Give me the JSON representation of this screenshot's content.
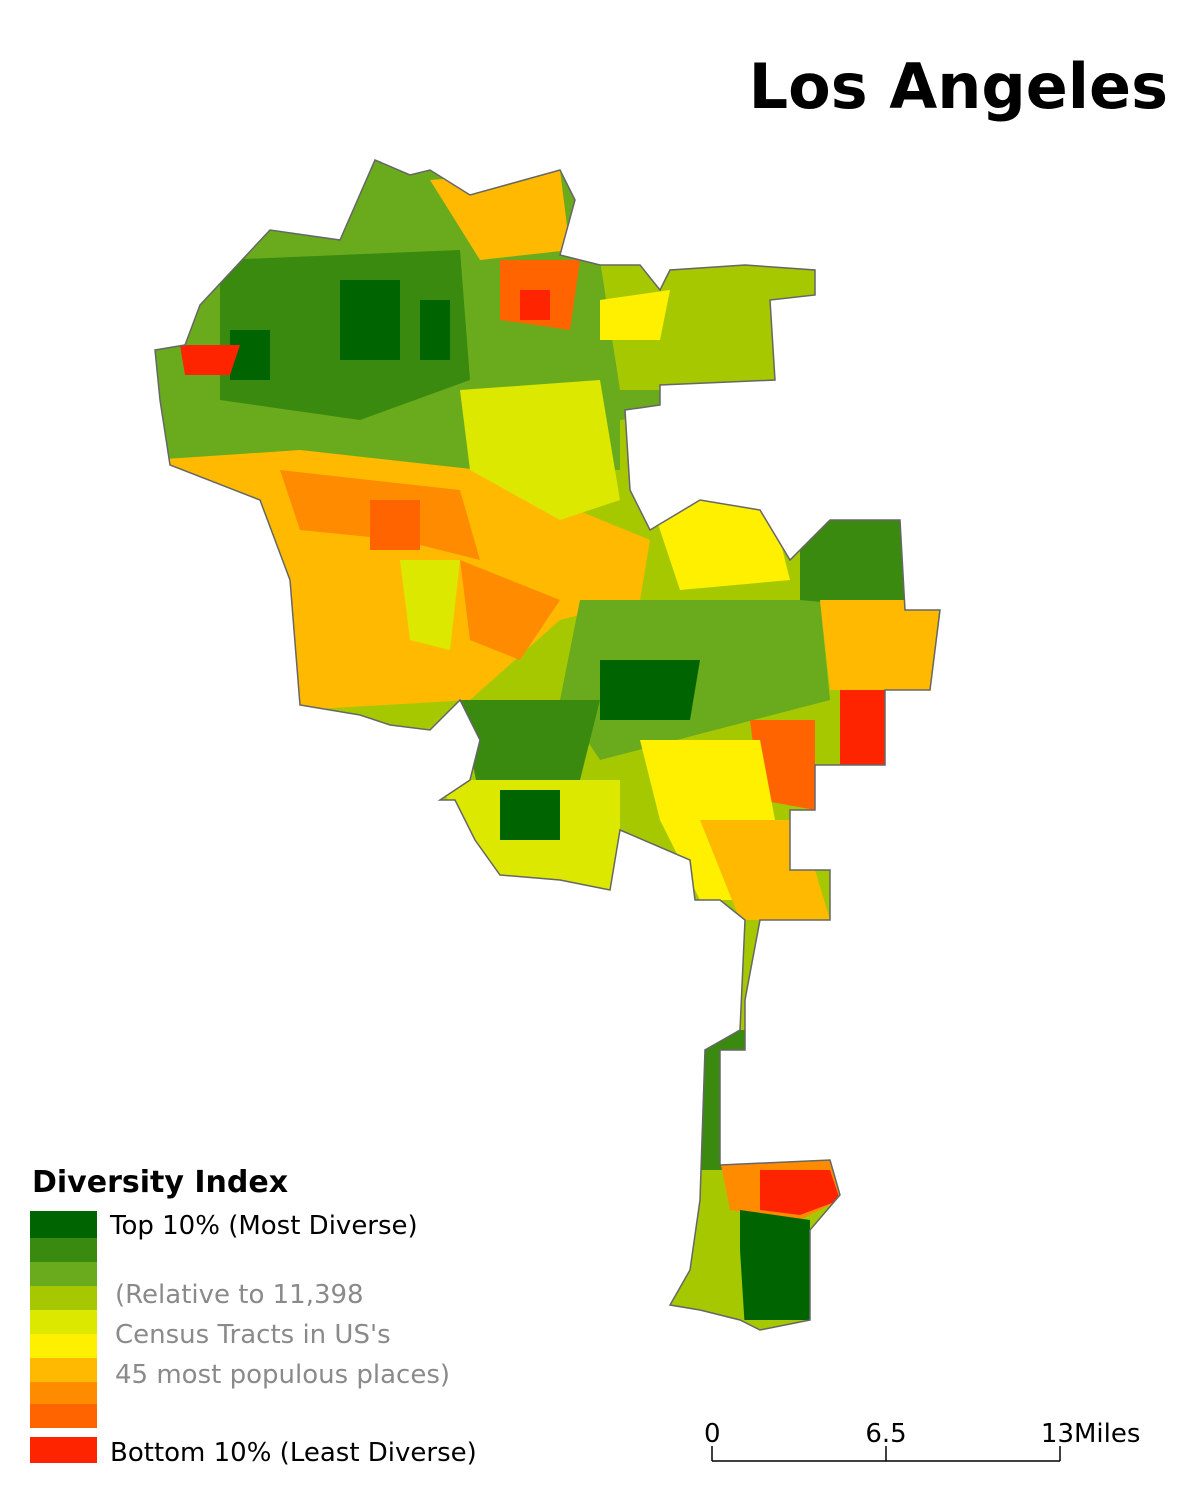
{
  "title": "Los Angeles",
  "legend": {
    "title": "Diversity Index",
    "colors": [
      "#006400",
      "#3a8a10",
      "#6aab1e",
      "#a6c800",
      "#dde800",
      "#fff000",
      "#ffba00",
      "#ff8c00",
      "#ff6400",
      "#ff2400"
    ],
    "top_label": "Top 10% (Most Diverse)",
    "bottom_label": "Bottom 10% (Least Diverse)",
    "note": [
      "(Relative to 11,398",
      "Census Tracts in US's",
      "45 most populous places)"
    ]
  },
  "scale_bar": {
    "ticks": [
      0,
      6.5,
      13
    ],
    "unit": "Miles"
  }
}
